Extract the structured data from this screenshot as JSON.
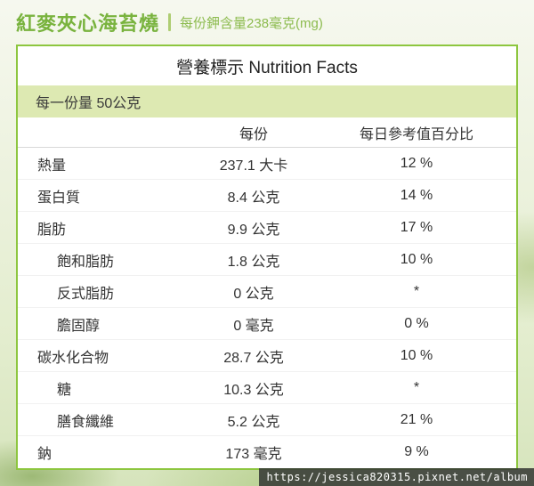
{
  "header": {
    "title": "紅麥夾心海苔燒",
    "subtitle": "每份鉀含量238毫克(mg)"
  },
  "table": {
    "title": "營養標示 Nutrition Facts",
    "serving": "每一份量 50公克",
    "headers": {
      "per_serving": "每份",
      "daily_value": "每日參考值百分比"
    },
    "rows": [
      {
        "label": "熱量",
        "indent": false,
        "amount": "237.1 大卡",
        "dv": "12 %"
      },
      {
        "label": "蛋白質",
        "indent": false,
        "amount": "8.4 公克",
        "dv": "14 %"
      },
      {
        "label": "脂肪",
        "indent": false,
        "amount": "9.9 公克",
        "dv": "17 %"
      },
      {
        "label": "飽和脂肪",
        "indent": true,
        "amount": "1.8 公克",
        "dv": "10 %"
      },
      {
        "label": "反式脂肪",
        "indent": true,
        "amount": "0 公克",
        "dv": "*"
      },
      {
        "label": "膽固醇",
        "indent": true,
        "amount": "0 毫克",
        "dv": "0 %"
      },
      {
        "label": "碳水化合物",
        "indent": false,
        "amount": "28.7 公克",
        "dv": "10 %"
      },
      {
        "label": "糖",
        "indent": true,
        "amount": "10.3 公克",
        "dv": "*"
      },
      {
        "label": "膳食纖維",
        "indent": true,
        "amount": "5.2 公克",
        "dv": "21 %"
      },
      {
        "label": "鈉",
        "indent": false,
        "amount": "173 毫克",
        "dv": "9 %"
      }
    ]
  },
  "watermark": {
    "url": "https://jessica820315.pixnet.net/album"
  },
  "colors": {
    "accent_green": "#8dc63f",
    "title_green": "#79b33e",
    "serving_row_bg": "#dde9b2",
    "text": "#333333",
    "watermark_bg": "#3a3d38"
  }
}
